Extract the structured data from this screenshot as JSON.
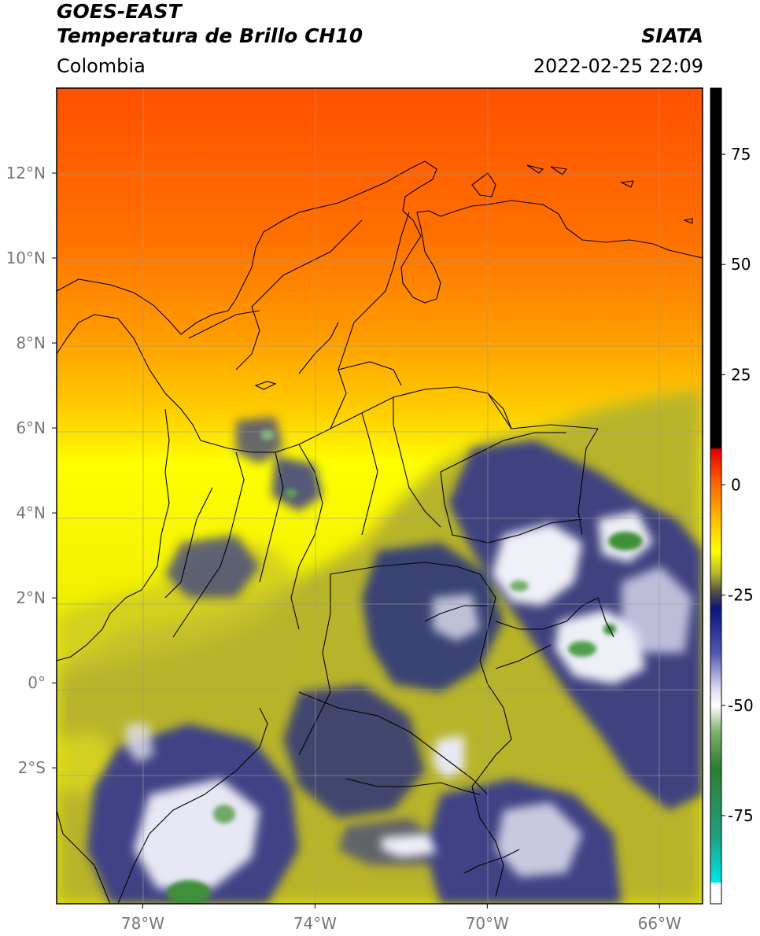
{
  "header": {
    "line1": "GOES-EAST",
    "line2": "Temperatura de Brillo CH10",
    "region": "Colombia",
    "source": "SIATA",
    "datetime": "2022-02-25 22:09"
  },
  "map": {
    "lon_range": [
      -80,
      -65
    ],
    "lat_range": [
      -5.2,
      14
    ],
    "lat_ticks": [
      {
        "value": 12,
        "label": "12°N"
      },
      {
        "value": 10,
        "label": "10°N"
      },
      {
        "value": 8,
        "label": "8°N"
      },
      {
        "value": 6,
        "label": "6°N"
      },
      {
        "value": 4,
        "label": "4°N"
      },
      {
        "value": 2,
        "label": "2°N"
      },
      {
        "value": 0,
        "label": "0°"
      },
      {
        "value": -2,
        "label": "2°S"
      }
    ],
    "lon_ticks": [
      {
        "value": -78,
        "label": "78°W"
      },
      {
        "value": -74,
        "label": "74°W"
      },
      {
        "value": -70,
        "label": "70°W"
      },
      {
        "value": -66,
        "label": "66°W"
      }
    ],
    "colors": {
      "north": "#ff5a00",
      "orange": "#ff9a00",
      "yellow": "#ffff00",
      "olive": "#b7b72a",
      "navy": "#1a1f8a",
      "white_cloud": "#f2f2f8",
      "green_core": "#3f8f3a",
      "grid": "#9a9a9a"
    }
  },
  "colorbar": {
    "range": [
      -95,
      90
    ],
    "tick_values": [
      75,
      50,
      25,
      0,
      -25,
      -50,
      -75
    ],
    "tick_labels": [
      "75",
      "50",
      "25",
      "0",
      "-25",
      "-50",
      "-75"
    ],
    "stops": [
      {
        "value": 90,
        "color": "#000000"
      },
      {
        "value": 8.5,
        "color": "#000000"
      },
      {
        "value": 8,
        "color": "#e60000"
      },
      {
        "value": 0,
        "color": "#ff6a00"
      },
      {
        "value": -8,
        "color": "#ffbf00"
      },
      {
        "value": -15,
        "color": "#ffff00"
      },
      {
        "value": -20,
        "color": "#b8b82b"
      },
      {
        "value": -24,
        "color": "#555540"
      },
      {
        "value": -28,
        "color": "#0b1480"
      },
      {
        "value": -38,
        "color": "#4f55b0"
      },
      {
        "value": -46,
        "color": "#d8d8ee"
      },
      {
        "value": -50,
        "color": "#ffffff"
      },
      {
        "value": -56,
        "color": "#7fb06f"
      },
      {
        "value": -64,
        "color": "#2f7f2f"
      },
      {
        "value": -80,
        "color": "#20a080"
      },
      {
        "value": -89,
        "color": "#00e0e0"
      },
      {
        "value": -90,
        "color": "#00e8e8"
      },
      {
        "value": -90.5,
        "color": "#ffffff"
      },
      {
        "value": -95,
        "color": "#ffffff"
      }
    ]
  }
}
